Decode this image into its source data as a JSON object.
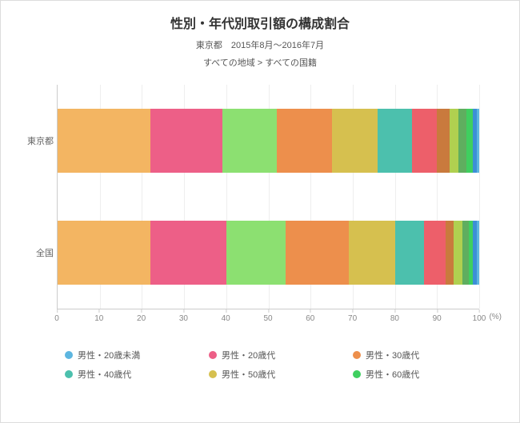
{
  "chart": {
    "type": "stacked-bar-horizontal-100pct",
    "title": "性別・年代別取引額の構成割合",
    "subtitle": "東京都　2015年8月～2016年7月",
    "subtitle2": "すべての地域 > すべての国籍",
    "background_color": "#ffffff",
    "grid_color": "#eeeeee",
    "axis_color": "#cccccc",
    "text_color": "#555555",
    "title_fontsize": 16,
    "label_fontsize": 11,
    "xaxis": {
      "unit_label": "(%)",
      "min": 0,
      "max": 100,
      "tick_step": 10,
      "ticks": [
        "0",
        "10",
        "20",
        "30",
        "40",
        "50",
        "60",
        "70",
        "80",
        "90",
        "100"
      ]
    },
    "categories": [
      {
        "label": "東京都",
        "values": [
          22,
          17,
          13,
          13,
          11,
          8,
          6,
          3,
          2,
          2,
          1.5,
          1,
          0.5
        ]
      },
      {
        "label": "全国",
        "values": [
          22,
          18,
          14,
          15,
          11,
          7,
          5,
          2,
          2,
          1.5,
          1,
          1,
          0.5
        ]
      }
    ],
    "series_colors": [
      "#f3b562",
      "#ed5f87",
      "#8ce071",
      "#ed8f4c",
      "#d6c04f",
      "#4cc0ad",
      "#ed5f6a",
      "#c97a3d",
      "#b0d050",
      "#5fae5f",
      "#3fcf5f",
      "#3d8fd6",
      "#5db6e0"
    ],
    "legend": [
      {
        "label": "男性・20歳未満",
        "color": "#5db6e0"
      },
      {
        "label": "男性・20歳代",
        "color": "#ed5f87"
      },
      {
        "label": "男性・30歳代",
        "color": "#ed8f4c"
      },
      {
        "label": "男性・40歳代",
        "color": "#4cc0ad"
      },
      {
        "label": "男性・50歳代",
        "color": "#d6c04f"
      },
      {
        "label": "男性・60歳代",
        "color": "#3fcf5f"
      }
    ]
  }
}
